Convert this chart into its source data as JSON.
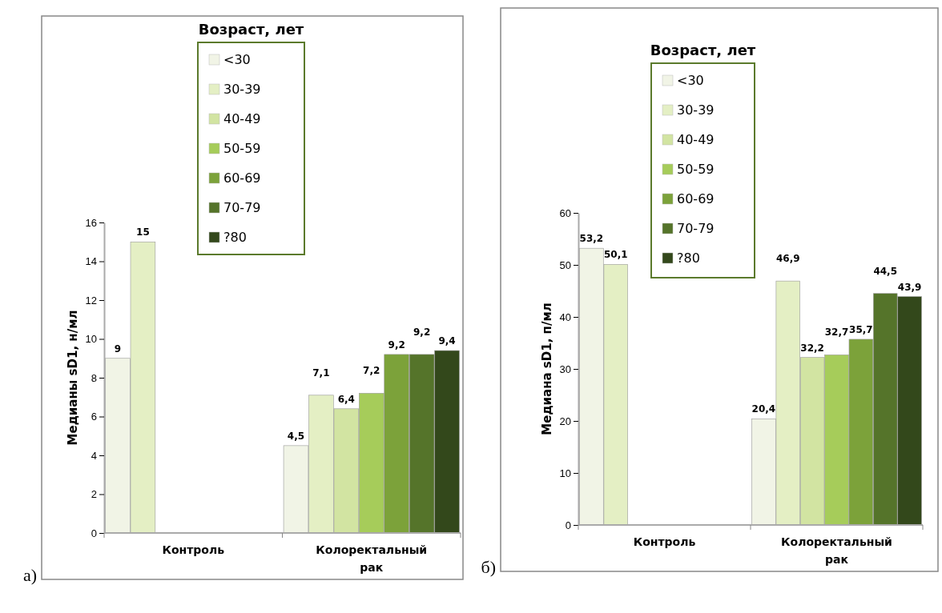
{
  "chart_data": [
    {
      "type": "bar",
      "ylabel": "Медианы sD1, н/мл",
      "legend_title": "Возраст, лет",
      "legend": "top",
      "categories": [
        "Контроль",
        "Колоректальный рак"
      ],
      "ylim": [
        0,
        16
      ],
      "yticks": [
        0,
        2,
        4,
        6,
        8,
        10,
        12,
        14,
        16
      ],
      "annotations": [
        "а)"
      ],
      "series": [
        {
          "name": "<30",
          "color": "#f1f4e6",
          "values": [
            9,
            4.5
          ],
          "value_labels": [
            "9",
            "4,5"
          ]
        },
        {
          "name": "30-39",
          "color": "#e4efc4",
          "values": [
            15,
            7.1
          ],
          "value_labels": [
            "15",
            "7,1"
          ]
        },
        {
          "name": "40-49",
          "color": "#d2e4a2",
          "values": [
            null,
            6.4
          ],
          "value_labels": [
            null,
            "6,4"
          ]
        },
        {
          "name": "50-59",
          "color": "#a6cc5a",
          "values": [
            null,
            7.2
          ],
          "value_labels": [
            null,
            "7,2"
          ]
        },
        {
          "name": "60-69",
          "color": "#7ca23a",
          "values": [
            null,
            9.2
          ],
          "value_labels": [
            null,
            "9,2"
          ]
        },
        {
          "name": "70-79",
          "color": "#55742a",
          "values": [
            null,
            9.2
          ],
          "value_labels": [
            null,
            "9,2"
          ]
        },
        {
          "name": "?80",
          "color": "#33481b",
          "values": [
            null,
            9.4
          ],
          "value_labels": [
            null,
            "9,4"
          ]
        }
      ]
    },
    {
      "type": "bar",
      "ylabel": "Медиана sD1, п/мл",
      "legend_title": "Возраст, лет",
      "legend": "top",
      "categories": [
        "Контроль",
        "Колоректальный рак"
      ],
      "ylim": [
        0,
        60
      ],
      "yticks": [
        0,
        10,
        20,
        30,
        40,
        50,
        60
      ],
      "annotations": [
        "б)"
      ],
      "series": [
        {
          "name": "<30",
          "color": "#f1f4e6",
          "values": [
            53.2,
            20.4
          ],
          "value_labels": [
            "53,2",
            "20,4"
          ]
        },
        {
          "name": "30-39",
          "color": "#e4efc4",
          "values": [
            50.1,
            46.9
          ],
          "value_labels": [
            "50,1",
            "46,9"
          ]
        },
        {
          "name": "40-49",
          "color": "#d2e4a2",
          "values": [
            null,
            32.2
          ],
          "value_labels": [
            null,
            "32,2"
          ]
        },
        {
          "name": "50-59",
          "color": "#a6cc5a",
          "values": [
            null,
            32.7
          ],
          "value_labels": [
            null,
            "32,7"
          ]
        },
        {
          "name": "60-69",
          "color": "#7ca23a",
          "values": [
            null,
            35.7
          ],
          "value_labels": [
            null,
            "35,7"
          ]
        },
        {
          "name": "70-79",
          "color": "#55742a",
          "values": [
            null,
            44.5
          ],
          "value_labels": [
            null,
            "44,5"
          ]
        },
        {
          "name": "?80",
          "color": "#33481b",
          "values": [
            null,
            43.9
          ],
          "value_labels": [
            null,
            "43,9"
          ]
        }
      ]
    }
  ]
}
